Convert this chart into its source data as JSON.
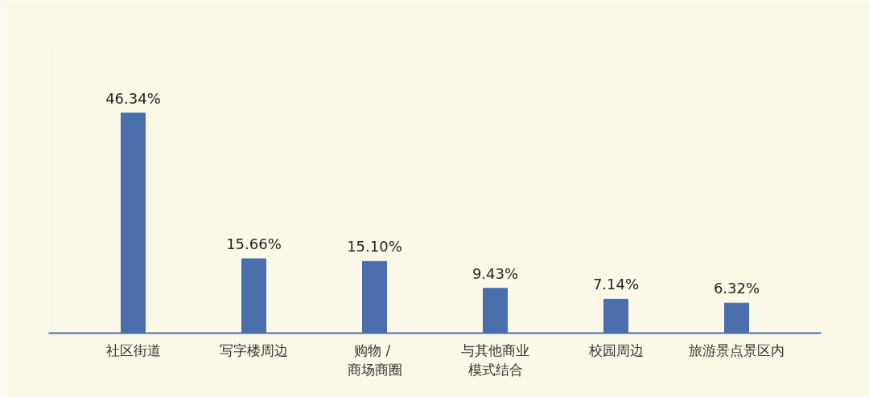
{
  "chart_data": {
    "type": "bar",
    "categories": [
      "社区街道",
      "写字楼周边",
      "购物 / 商场商圈",
      "与其他商业模式结合",
      "校园周边",
      "旅游景点景区内"
    ],
    "values": [
      46.34,
      15.66,
      15.1,
      9.43,
      7.14,
      6.32
    ],
    "value_labels": [
      "46.34%",
      "15.66%",
      "15.10%",
      "9.43%",
      "7.14%",
      "6.32%"
    ],
    "color": "#4a6eab",
    "tick_labels": "x",
    "grid": false
  }
}
